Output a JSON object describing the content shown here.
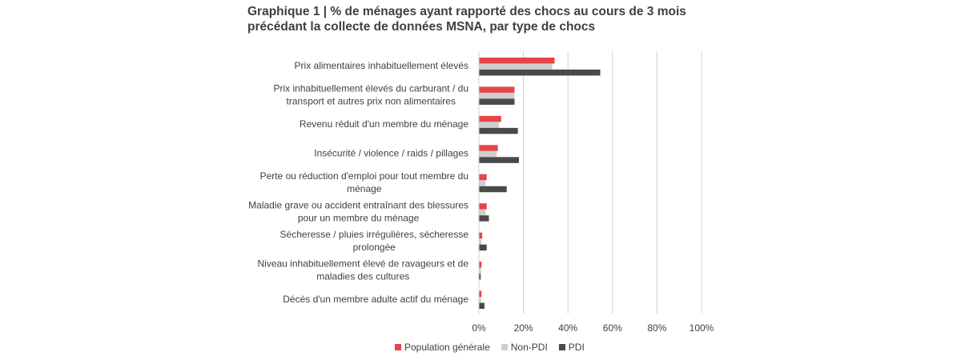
{
  "title_line1": "Graphique 1 | % de ménages ayant rapporté des chocs au cours de 3 mois",
  "title_line2": "précédant la collecte de données MSNA, par type de chocs",
  "colors": {
    "population_generale": "#e5454a",
    "non_pdi": "#cfcfcf",
    "pdi": "#4a4a4a",
    "grid": "#d0d0d0"
  },
  "chart_data": {
    "type": "bar",
    "orientation": "horizontal",
    "categories": [
      [
        "Prix alimentaires inhabituellement élevés"
      ],
      [
        "Prix inhabituellement élevés du carburant / du",
        "transport et autres prix non alimentaires"
      ],
      [
        "Revenu réduit d'un membre du ménage"
      ],
      [
        "Insécurité / violence / raids / pillages"
      ],
      [
        "Perte ou réduction d'emploi pour tout membre du",
        "ménage"
      ],
      [
        "Maladie grave ou accident entraînant des blessures",
        "pour un membre du ménage"
      ],
      [
        "Sécheresse / pluies irrégulières, sécheresse",
        "prolongée"
      ],
      [
        "Niveau inhabituellement élevé de ravageurs et de",
        "maladies des cultures"
      ],
      [
        "Décès d'un membre adulte actif du ménage"
      ]
    ],
    "series": [
      {
        "name": "Population générale",
        "values": [
          34,
          16,
          10,
          8.5,
          3.5,
          3.5,
          1.5,
          1.2,
          1.2
        ]
      },
      {
        "name": "Non-PDI",
        "values": [
          33,
          16,
          9,
          8,
          3,
          3,
          1.2,
          1,
          1
        ]
      },
      {
        "name": "PDI",
        "values": [
          54.5,
          16,
          17.5,
          18,
          12.5,
          4.5,
          3.5,
          0.8,
          2.5
        ]
      }
    ],
    "xlim": [
      0,
      100
    ],
    "xticks": [
      "0%",
      "20%",
      "40%",
      "60%",
      "80%",
      "100%"
    ],
    "xtick_values": [
      0,
      20,
      40,
      60,
      80,
      100
    ],
    "grid": true,
    "legend_position": "bottom"
  }
}
